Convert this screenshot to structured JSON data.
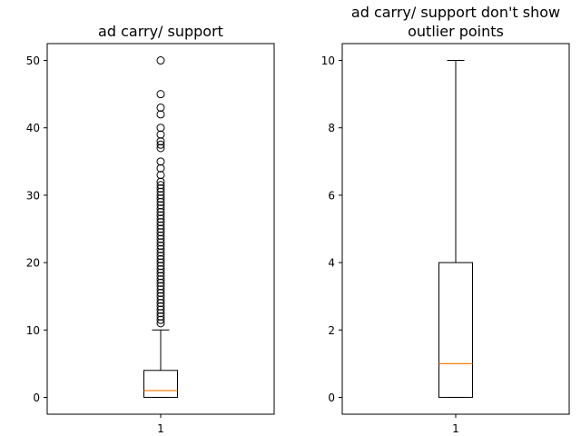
{
  "chart_data": [
    {
      "type": "boxplot",
      "title": [
        "ad carry/ support"
      ],
      "xlabel": "",
      "ylabel": "",
      "categories": [
        "1"
      ],
      "ylim": [
        -2.5,
        52.5
      ],
      "yticks": [
        0,
        10,
        20,
        30,
        40,
        50
      ],
      "box": {
        "whisker_low": 0,
        "q1": 0,
        "median": 1,
        "q3": 4,
        "whisker_high": 10
      },
      "outliers": [
        11,
        11.5,
        12,
        12.5,
        13,
        13.5,
        14,
        14.5,
        15,
        15.5,
        16,
        16.5,
        17,
        17.5,
        18,
        18.5,
        19,
        19.5,
        20,
        20.5,
        21,
        21.5,
        22,
        22.5,
        23,
        23.5,
        24,
        24.5,
        25,
        25.5,
        26,
        26.5,
        27,
        27.5,
        28,
        28.5,
        29,
        29.5,
        30,
        30.5,
        31,
        31.5,
        32,
        33,
        34,
        35,
        37,
        37.5,
        38,
        39,
        40,
        42,
        43,
        45,
        50
      ],
      "colors": {
        "box": "#000000",
        "median": "#ff7f0e",
        "outlier_edge": "#000000"
      }
    },
    {
      "type": "boxplot",
      "title": [
        "ad carry/ support don't show",
        "outlier points"
      ],
      "xlabel": "",
      "ylabel": "",
      "categories": [
        "1"
      ],
      "ylim": [
        -0.5,
        10.5
      ],
      "yticks": [
        0,
        2,
        4,
        6,
        8,
        10
      ],
      "box": {
        "whisker_low": 0,
        "q1": 0,
        "median": 1,
        "q3": 4,
        "whisker_high": 10
      },
      "outliers": [],
      "colors": {
        "box": "#000000",
        "median": "#ff7f0e",
        "outlier_edge": "#000000"
      }
    }
  ]
}
